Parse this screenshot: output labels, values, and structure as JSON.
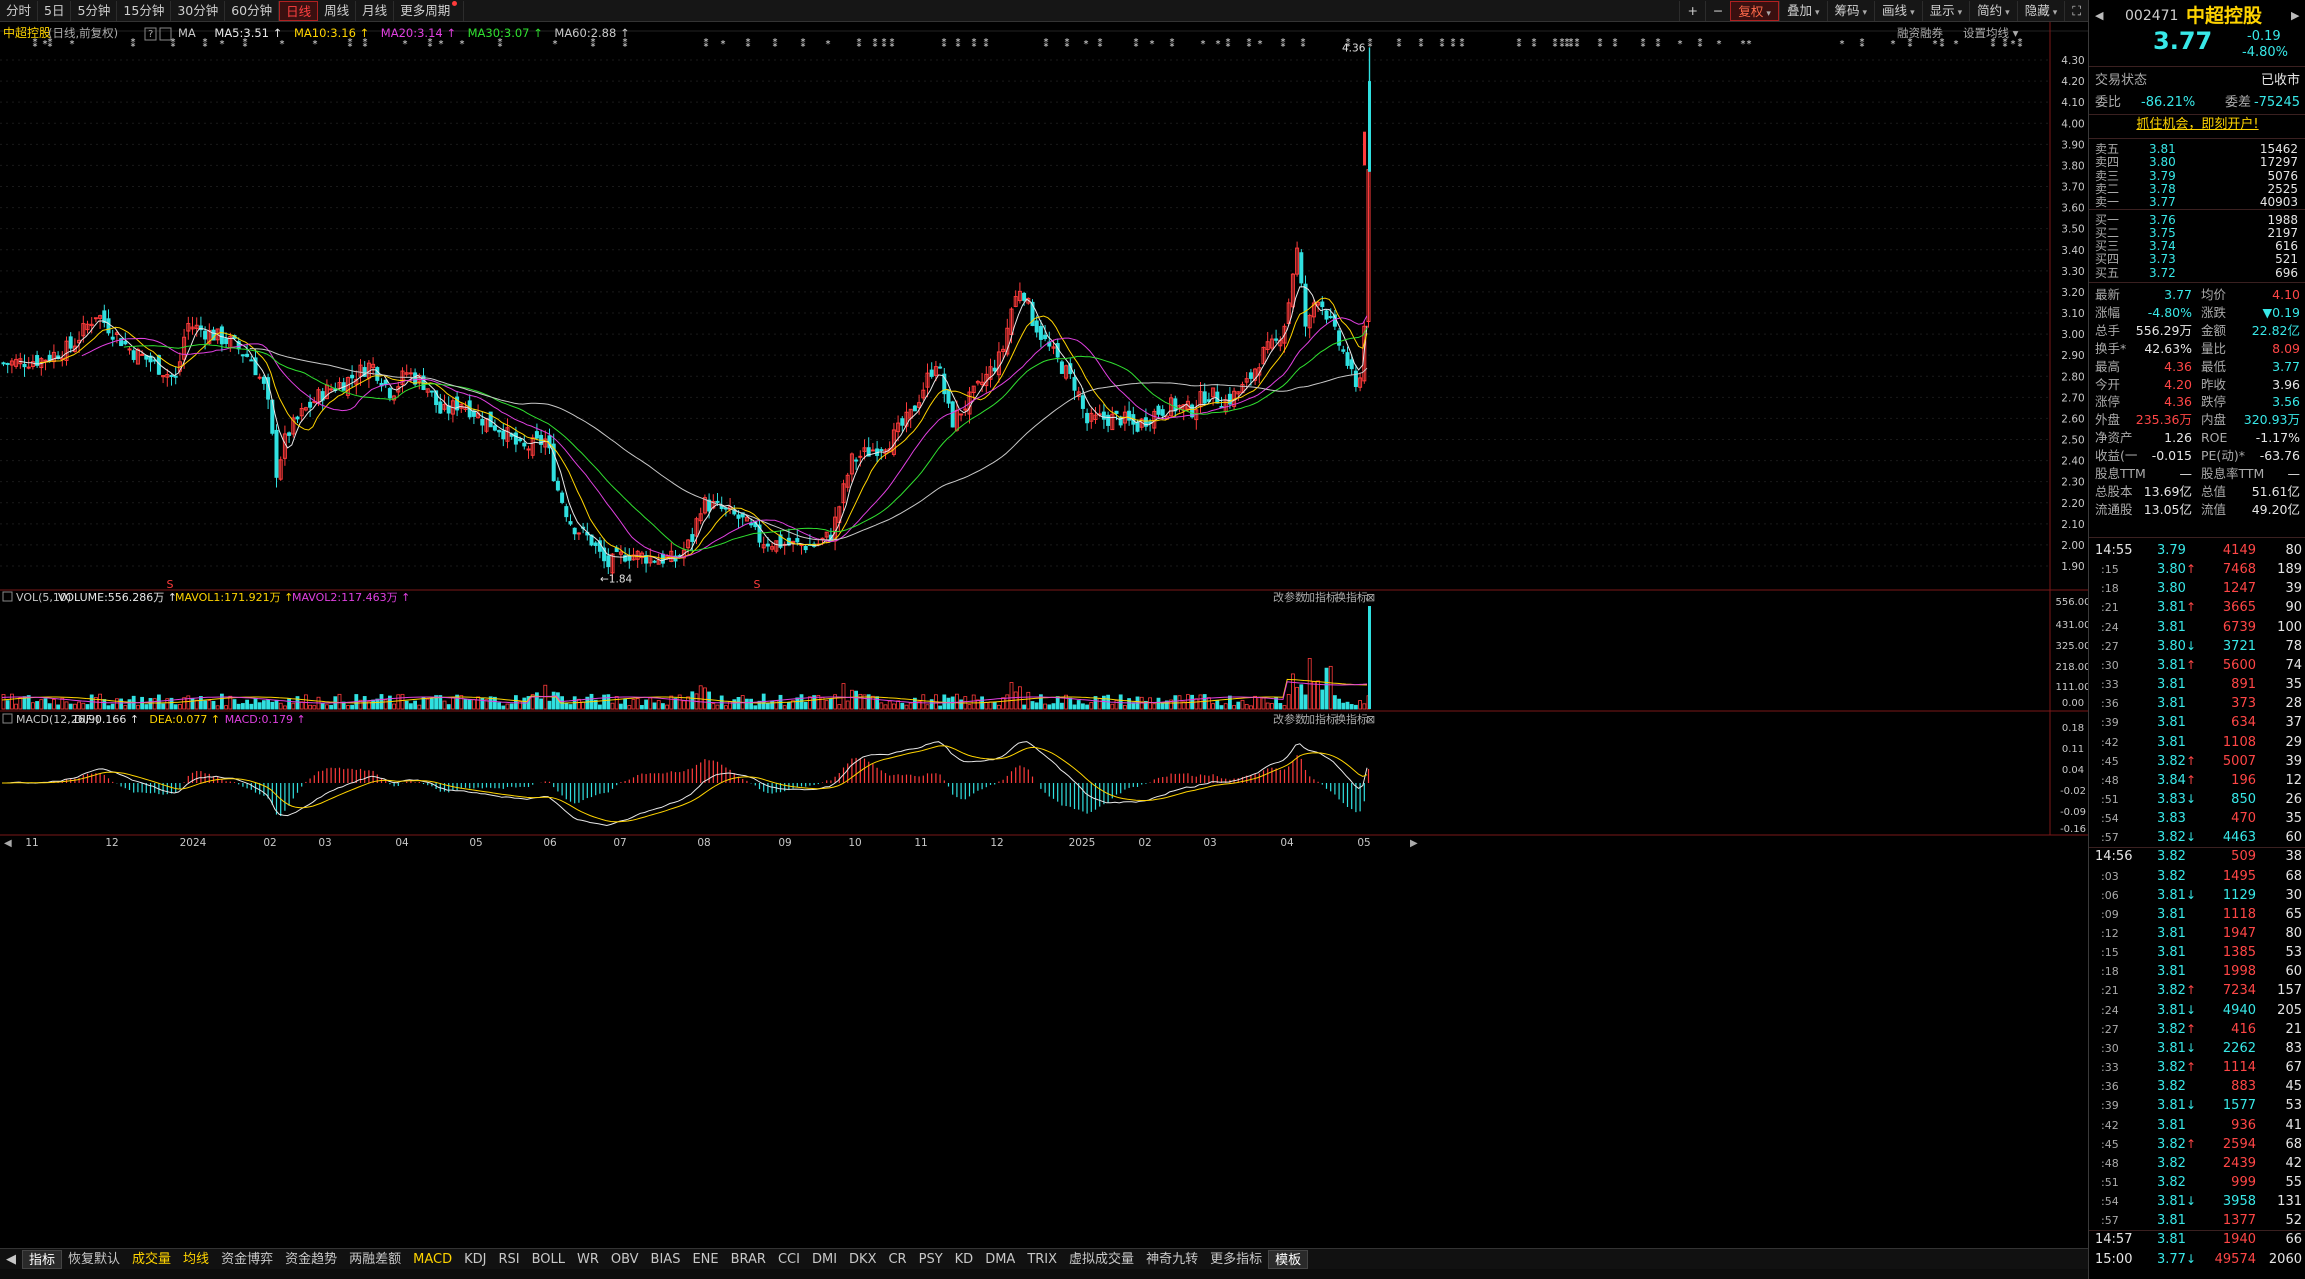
{
  "toolbar": {
    "periods": [
      "分时",
      "5日",
      "5分钟",
      "15分钟",
      "30分钟",
      "60分钟",
      "日线",
      "周线",
      "月线",
      "更多周期"
    ],
    "active_period": "日线",
    "right_buttons": [
      "复权",
      "叠加",
      "筹码",
      "画线",
      "显示",
      "简约",
      "隐藏"
    ]
  },
  "header": {
    "stock_name": "中超控股",
    "mode": "(日线,前复权)",
    "ma_items": [
      {
        "label": "MA",
        "value": "",
        "color": "#c8c8c8"
      },
      {
        "label": "MA5:",
        "value": "3.51",
        "color": "#e8e8e8"
      },
      {
        "label": "MA10:",
        "value": "3.16",
        "color": "#ffd400"
      },
      {
        "label": "MA20:",
        "value": "3.14",
        "color": "#e040e0"
      },
      {
        "label": "MA30:",
        "value": "3.07",
        "color": "#30e030"
      },
      {
        "label": "MA60:",
        "value": "2.88",
        "color": "#c8c8c8"
      }
    ],
    "right_links": [
      "融资融券",
      "设置均线"
    ]
  },
  "price_axis": [
    "4.30",
    "4.20",
    "4.10",
    "4.00",
    "3.90",
    "3.80",
    "3.70",
    "3.60",
    "3.50",
    "3.40",
    "3.30",
    "3.20",
    "3.10",
    "3.00",
    "2.90",
    "2.80",
    "2.70",
    "2.60",
    "2.50",
    "2.40",
    "2.30",
    "2.20",
    "2.10",
    "2.00",
    "1.90"
  ],
  "price_marks": {
    "high": "4.36",
    "low": "1.84"
  },
  "vol_panel": {
    "title": "VOL(5,10)",
    "items": [
      {
        "label": "VOLUME:",
        "value": "556.286万",
        "color": "#e8e8e8"
      },
      {
        "label": "MAVOL1:",
        "value": "171.921万",
        "color": "#ffd400"
      },
      {
        "label": "MAVOL2:",
        "value": "117.463万",
        "color": "#e040e0"
      }
    ],
    "axis": [
      "556.00",
      "431.00",
      "325.00",
      "218.00",
      "111.00",
      "0.00"
    ],
    "buttons": [
      "改参数",
      "加指标",
      "换指标"
    ]
  },
  "macd_panel": {
    "title": "MACD(12,26,9)",
    "items": [
      {
        "label": "DIF:",
        "value": "0.166",
        "color": "#e8e8e8"
      },
      {
        "label": "DEA:",
        "value": "0.077",
        "color": "#ffd400"
      },
      {
        "label": "MACD:",
        "value": "0.179",
        "color": "#e040e0"
      }
    ],
    "axis": [
      "0.18",
      "0.11",
      "0.04",
      "-0.02",
      "-0.09",
      "-0.16"
    ],
    "buttons": [
      "改参数",
      "加指标",
      "换指标"
    ]
  },
  "x_axis": [
    "11",
    "12",
    "2024",
    "02",
    "03",
    "04",
    "05",
    "06",
    "07",
    "08",
    "09",
    "10",
    "11",
    "12",
    "2025",
    "02",
    "03",
    "04",
    "05"
  ],
  "bottom_tabs": [
    "指标",
    "恢复默认",
    "成交量",
    "均线",
    "资金博弈",
    "资金趋势",
    "两融差额",
    "MACD",
    "KDJ",
    "RSI",
    "BOLL",
    "WR",
    "OBV",
    "BIAS",
    "ENE",
    "BRAR",
    "CCI",
    "DMI",
    "DKX",
    "CR",
    "PSY",
    "KD",
    "DMA",
    "TRIX",
    "虚拟成交量",
    "神奇九转",
    "更多指标",
    "模板"
  ],
  "quote": {
    "code": "002471",
    "name": "中超控股",
    "price": "3.77",
    "change": "-0.19",
    "change_pct": "-4.80%",
    "status_label": "交易状态",
    "status_value": "已收市",
    "weibi_label": "委比",
    "weibi_value": "-86.21%",
    "weicha_label": "委差",
    "weicha_value": "-75245",
    "banner": "抓住机会，即刻开户!",
    "asks": [
      {
        "label": "卖五",
        "price": "3.81",
        "vol": "15462"
      },
      {
        "label": "卖四",
        "price": "3.80",
        "vol": "17297"
      },
      {
        "label": "卖三",
        "price": "3.79",
        "vol": "5076"
      },
      {
        "label": "卖二",
        "price": "3.78",
        "vol": "2525"
      },
      {
        "label": "卖一",
        "price": "3.77",
        "vol": "40903"
      }
    ],
    "bids": [
      {
        "label": "买一",
        "price": "3.76",
        "vol": "1988"
      },
      {
        "label": "买二",
        "price": "3.75",
        "vol": "2197"
      },
      {
        "label": "买三",
        "price": "3.74",
        "vol": "616"
      },
      {
        "label": "买四",
        "price": "3.73",
        "vol": "521"
      },
      {
        "label": "买五",
        "price": "3.72",
        "vol": "696"
      }
    ],
    "stats": [
      [
        {
          "l": "最新",
          "v": "3.77",
          "c": "gr"
        },
        {
          "l": "均价",
          "v": "4.10",
          "c": "rd"
        }
      ],
      [
        {
          "l": "涨幅",
          "v": "-4.80%",
          "c": "gr"
        },
        {
          "l": "涨跌",
          "v": "▼0.19",
          "c": "gr"
        }
      ],
      [
        {
          "l": "总手",
          "v": "556.29万",
          "c": "wh"
        },
        {
          "l": "金额",
          "v": "22.82亿",
          "c": "gr"
        }
      ],
      [
        {
          "l": "换手*",
          "v": "42.63%",
          "c": "wh"
        },
        {
          "l": "量比",
          "v": "8.09",
          "c": "rd"
        }
      ],
      [
        {
          "l": "最高",
          "v": "4.36",
          "c": "rd"
        },
        {
          "l": "最低",
          "v": "3.77",
          "c": "gr"
        }
      ],
      [
        {
          "l": "今开",
          "v": "4.20",
          "c": "rd"
        },
        {
          "l": "昨收",
          "v": "3.96",
          "c": "wh"
        }
      ],
      [
        {
          "l": "涨停",
          "v": "4.36",
          "c": "rd"
        },
        {
          "l": "跌停",
          "v": "3.56",
          "c": "gr"
        }
      ],
      [
        {
          "l": "外盘",
          "v": "235.36万",
          "c": "rd"
        },
        {
          "l": "内盘",
          "v": "320.93万",
          "c": "gr"
        }
      ],
      [
        {
          "l": "净资产",
          "v": "1.26",
          "c": "wh"
        },
        {
          "l": "ROE",
          "v": "-1.17%",
          "c": "wh"
        }
      ],
      [
        {
          "l": "收益(一",
          "v": "-0.015",
          "c": "wh"
        },
        {
          "l": "PE(动)*",
          "v": "-63.76",
          "c": "wh"
        }
      ],
      [
        {
          "l": "股息TTM",
          "v": "—",
          "c": "wh"
        },
        {
          "l": "股息率TTM",
          "v": "—",
          "c": "wh"
        }
      ],
      [
        {
          "l": "总股本",
          "v": "13.69亿",
          "c": "wh"
        },
        {
          "l": "总值",
          "v": "51.61亿",
          "c": "wh"
        }
      ],
      [
        {
          "l": "流通股",
          "v": "13.05亿",
          "c": "wh"
        },
        {
          "l": "流值",
          "v": "49.20亿",
          "c": "wh"
        }
      ]
    ],
    "ticks": [
      {
        "t": "14:55",
        "p": "3.79",
        "v": "4149",
        "n": "80",
        "pc": "gr",
        "vc": "rd",
        "a": ""
      },
      {
        "t": ":15",
        "p": "3.80",
        "v": "7468",
        "n": "189",
        "pc": "gr",
        "vc": "rd",
        "a": "up"
      },
      {
        "t": ":18",
        "p": "3.80",
        "v": "1247",
        "n": "39",
        "pc": "gr",
        "vc": "rd",
        "a": ""
      },
      {
        "t": ":21",
        "p": "3.81",
        "v": "3665",
        "n": "90",
        "pc": "gr",
        "vc": "rd",
        "a": "up"
      },
      {
        "t": ":24",
        "p": "3.81",
        "v": "6739",
        "n": "100",
        "pc": "gr",
        "vc": "rd",
        "a": ""
      },
      {
        "t": ":27",
        "p": "3.80",
        "v": "3721",
        "n": "78",
        "pc": "gr",
        "vc": "gr",
        "a": "down"
      },
      {
        "t": ":30",
        "p": "3.81",
        "v": "5600",
        "n": "74",
        "pc": "gr",
        "vc": "rd",
        "a": "up"
      },
      {
        "t": ":33",
        "p": "3.81",
        "v": "891",
        "n": "35",
        "pc": "gr",
        "vc": "rd",
        "a": ""
      },
      {
        "t": ":36",
        "p": "3.81",
        "v": "373",
        "n": "28",
        "pc": "gr",
        "vc": "rd",
        "a": ""
      },
      {
        "t": ":39",
        "p": "3.81",
        "v": "634",
        "n": "37",
        "pc": "gr",
        "vc": "rd",
        "a": ""
      },
      {
        "t": ":42",
        "p": "3.81",
        "v": "1108",
        "n": "29",
        "pc": "gr",
        "vc": "rd",
        "a": ""
      },
      {
        "t": ":45",
        "p": "3.82",
        "v": "5007",
        "n": "39",
        "pc": "gr",
        "vc": "rd",
        "a": "up"
      },
      {
        "t": ":48",
        "p": "3.84",
        "v": "196",
        "n": "12",
        "pc": "gr",
        "vc": "rd",
        "a": "up"
      },
      {
        "t": ":51",
        "p": "3.83",
        "v": "850",
        "n": "26",
        "pc": "gr",
        "vc": "gr",
        "a": "down"
      },
      {
        "t": ":54",
        "p": "3.83",
        "v": "470",
        "n": "35",
        "pc": "gr",
        "vc": "rd",
        "a": ""
      },
      {
        "t": ":57",
        "p": "3.82",
        "v": "4463",
        "n": "60",
        "pc": "gr",
        "vc": "gr",
        "a": "down"
      },
      {
        "t": "14:56",
        "p": "3.82",
        "v": "509",
        "n": "38",
        "pc": "gr",
        "vc": "rd",
        "a": ""
      },
      {
        "t": ":03",
        "p": "3.82",
        "v": "1495",
        "n": "68",
        "pc": "gr",
        "vc": "rd",
        "a": ""
      },
      {
        "t": ":06",
        "p": "3.81",
        "v": "1129",
        "n": "30",
        "pc": "gr",
        "vc": "gr",
        "a": "down"
      },
      {
        "t": ":09",
        "p": "3.81",
        "v": "1118",
        "n": "65",
        "pc": "gr",
        "vc": "rd",
        "a": ""
      },
      {
        "t": ":12",
        "p": "3.81",
        "v": "1947",
        "n": "80",
        "pc": "gr",
        "vc": "rd",
        "a": ""
      },
      {
        "t": ":15",
        "p": "3.81",
        "v": "1385",
        "n": "53",
        "pc": "gr",
        "vc": "rd",
        "a": ""
      },
      {
        "t": ":18",
        "p": "3.81",
        "v": "1998",
        "n": "60",
        "pc": "gr",
        "vc": "rd",
        "a": ""
      },
      {
        "t": ":21",
        "p": "3.82",
        "v": "7234",
        "n": "157",
        "pc": "gr",
        "vc": "rd",
        "a": "up"
      },
      {
        "t": ":24",
        "p": "3.81",
        "v": "4940",
        "n": "205",
        "pc": "gr",
        "vc": "gr",
        "a": "down"
      },
      {
        "t": ":27",
        "p": "3.82",
        "v": "416",
        "n": "21",
        "pc": "gr",
        "vc": "rd",
        "a": "up"
      },
      {
        "t": ":30",
        "p": "3.81",
        "v": "2262",
        "n": "83",
        "pc": "gr",
        "vc": "gr",
        "a": "down"
      },
      {
        "t": ":33",
        "p": "3.82",
        "v": "1114",
        "n": "67",
        "pc": "gr",
        "vc": "rd",
        "a": "up"
      },
      {
        "t": ":36",
        "p": "3.82",
        "v": "883",
        "n": "45",
        "pc": "gr",
        "vc": "rd",
        "a": ""
      },
      {
        "t": ":39",
        "p": "3.81",
        "v": "1577",
        "n": "53",
        "pc": "gr",
        "vc": "gr",
        "a": "down"
      },
      {
        "t": ":42",
        "p": "3.81",
        "v": "936",
        "n": "41",
        "pc": "gr",
        "vc": "rd",
        "a": ""
      },
      {
        "t": ":45",
        "p": "3.82",
        "v": "2594",
        "n": "68",
        "pc": "gr",
        "vc": "rd",
        "a": "up"
      },
      {
        "t": ":48",
        "p": "3.82",
        "v": "2439",
        "n": "42",
        "pc": "gr",
        "vc": "rd",
        "a": ""
      },
      {
        "t": ":51",
        "p": "3.82",
        "v": "999",
        "n": "55",
        "pc": "gr",
        "vc": "rd",
        "a": ""
      },
      {
        "t": ":54",
        "p": "3.81",
        "v": "3958",
        "n": "131",
        "pc": "gr",
        "vc": "gr",
        "a": "down"
      },
      {
        "t": ":57",
        "p": "3.81",
        "v": "1377",
        "n": "52",
        "pc": "gr",
        "vc": "rd",
        "a": ""
      },
      {
        "t": "14:57",
        "p": "3.81",
        "v": "1940",
        "n": "66",
        "pc": "gr",
        "vc": "rd",
        "a": ""
      },
      {
        "t": "15:00",
        "p": "3.77",
        "v": "49574",
        "n": "2060",
        "pc": "gr",
        "vc": "rd",
        "a": "down"
      }
    ]
  },
  "colors": {
    "up": "#ff3b3b",
    "down": "#30e0e0",
    "ma5": "#e8e8e8",
    "ma10": "#ffd400",
    "ma20": "#e040e0",
    "ma30": "#30e030",
    "ma60": "#c8c8c8",
    "bg": "#000000"
  }
}
